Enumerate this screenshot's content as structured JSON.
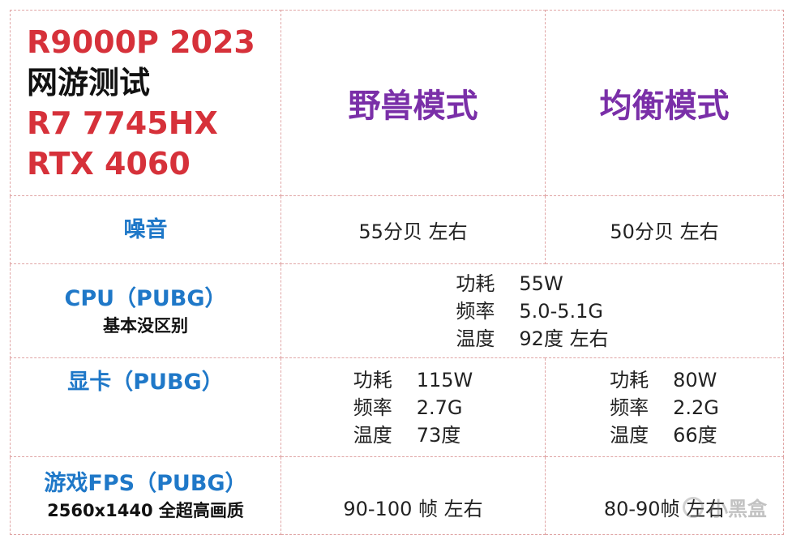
{
  "header": {
    "title_lines": [
      "R9000P 2023",
      "网游测试",
      "R7 7745HX",
      "RTX 4060"
    ],
    "mode_beast": "野兽模式",
    "mode_balance": "均衡模式"
  },
  "rows": {
    "noise": {
      "label": "噪音",
      "beast": "55分贝 左右",
      "balance": "50分贝 左右"
    },
    "cpu": {
      "label": "CPU（PUBG）",
      "sublabel": "基本没区别",
      "power_key": "功耗",
      "power_val": "55W",
      "freq_key": "频率",
      "freq_val": "5.0-5.1G",
      "temp_key": "温度",
      "temp_val": "92度 左右"
    },
    "gpu": {
      "label": "显卡（PUBG）",
      "beast": {
        "power_key": "功耗",
        "power_val": "115W",
        "freq_key": "频率",
        "freq_val": "2.7G",
        "temp_key": "温度",
        "temp_val": "73度"
      },
      "balance": {
        "power_key": "功耗",
        "power_val": "80W",
        "freq_key": "频率",
        "freq_val": "2.2G",
        "temp_key": "温度",
        "temp_val": "66度"
      }
    },
    "fps": {
      "label": "游戏FPS（PUBG）",
      "sublabel": "2560x1440 全超高画质",
      "beast": "90-100 帧 左右",
      "balance": "80-90帧 左右"
    }
  },
  "watermark": {
    "text": "小黑盒",
    "icon": "heybox-logo-icon"
  }
}
